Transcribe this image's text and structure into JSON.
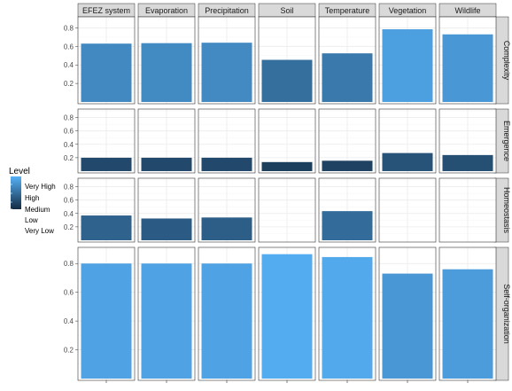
{
  "chart_data": {
    "type": "bar",
    "facet_columns": [
      "EFEZ system",
      "Evaporation",
      "Precipitation",
      "Soil",
      "Temperature",
      "Vegetation",
      "Wildlife"
    ],
    "facet_rows": [
      "Complexity",
      "Emergence",
      "Homeostasis",
      "Self-organization"
    ],
    "values": [
      [
        0.63,
        0.635,
        0.64,
        0.455,
        0.525,
        0.785,
        0.73
      ],
      [
        0.2,
        0.2,
        0.2,
        0.135,
        0.155,
        0.27,
        0.24
      ],
      [
        0.37,
        0.325,
        0.34,
        0,
        0.435,
        0,
        0
      ],
      [
        0.8,
        0.8,
        0.8,
        0.865,
        0.845,
        0.73,
        0.76
      ]
    ],
    "ylim": [
      0,
      0.9
    ],
    "y_ticks": [
      "0.2",
      "0.4",
      "0.6",
      "0.8"
    ],
    "color_by": "value",
    "legend": {
      "title": "Level",
      "labels": [
        "Very High",
        "High",
        "Medium",
        "Low",
        "Very Low"
      ],
      "position": "left"
    },
    "colors": {
      "low": "#132b43",
      "high": "#56b1f7",
      "strip": "#d9d9d9",
      "grid": "#ebebeb",
      "border": "#333333"
    },
    "grid": true
  }
}
